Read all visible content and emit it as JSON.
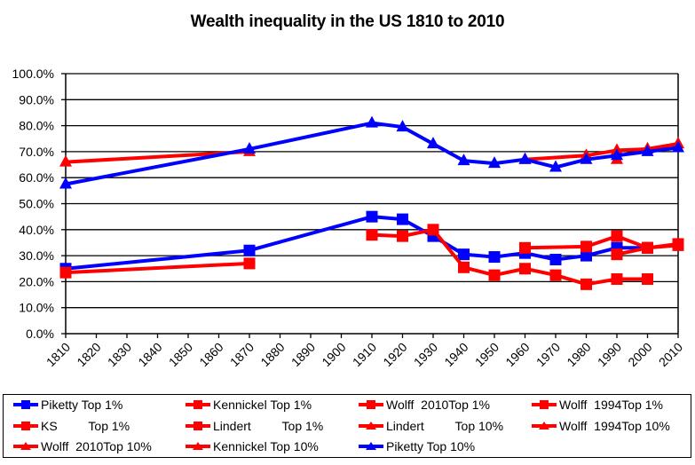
{
  "chart_data": {
    "type": "line",
    "title": "Wealth inequality  in the US 1810 to 2010",
    "xlabel": "",
    "ylabel": "",
    "x_ticks": [
      "1810",
      "1820",
      "1830",
      "1840",
      "1850",
      "1860",
      "1870",
      "1880",
      "1890",
      "1900",
      "1910",
      "1920",
      "1930",
      "1940",
      "1950",
      "1960",
      "1970",
      "1980",
      "1990",
      "2000",
      "2010"
    ],
    "xlim": [
      1810,
      2010
    ],
    "ylim": [
      0,
      100
    ],
    "y_ticks": [
      "0.0%",
      "10.0%",
      "20.0%",
      "30.0%",
      "40.0%",
      "50.0%",
      "60.0%",
      "70.0%",
      "80.0%",
      "90.0%",
      "100.0%"
    ],
    "grid": "horizontal",
    "legend_position": "bottom",
    "series": [
      {
        "name": "Piketty Top 1%",
        "color": "#0000ff",
        "marker": "square",
        "x": [
          1810,
          1870,
          1910,
          1920,
          1930,
          1940,
          1950,
          1960,
          1970,
          1980,
          1990,
          2000
        ],
        "y": [
          25,
          32,
          45,
          44,
          37.5,
          30.5,
          29.5,
          31,
          28.5,
          30,
          33,
          33
        ]
      },
      {
        "name": "Kennickel Top 1%",
        "color": "#ff0000",
        "marker": "square",
        "x": [
          1960,
          1980,
          1990,
          2000,
          2010
        ],
        "y": [
          33,
          33.5,
          37.5,
          33,
          34
        ]
      },
      {
        "name": "Wolff  2010Top 1%",
        "color": "#ff0000",
        "marker": "square",
        "x": [
          2000,
          2010
        ],
        "y": [
          33,
          34.5
        ]
      },
      {
        "name": "Wolff  1994Top 1%",
        "color": "#ff0000",
        "marker": "square",
        "x": [
          1990,
          2000
        ],
        "y": [
          30.5,
          33
        ]
      },
      {
        "name": "KS         Top 1%",
        "color": "#ff0000",
        "marker": "square",
        "x": [
          1910,
          1920,
          1930,
          1940,
          1950,
          1960,
          1970,
          1980,
          1990,
          2000
        ],
        "y": [
          38,
          37.5,
          40,
          25.5,
          22.5,
          25,
          22.5,
          19,
          21,
          21
        ]
      },
      {
        "name": "Lindert         Top 1%",
        "color": "#ff0000",
        "marker": "square",
        "x": [
          1810,
          1870
        ],
        "y": [
          23.5,
          27
        ]
      },
      {
        "name": "Lindert         Top 10%",
        "color": "#ff0000",
        "marker": "triangle",
        "x": [
          1810,
          1870
        ],
        "y": [
          66,
          70
        ]
      },
      {
        "name": "Wolff  1994Top 10%",
        "color": "#ff0000",
        "marker": "triangle",
        "x": [
          1990
        ],
        "y": [
          67
        ]
      },
      {
        "name": "Wolff  2010Top 10%",
        "color": "#ff0000",
        "marker": "triangle",
        "x": [
          2000,
          2010
        ],
        "y": [
          71,
          73
        ]
      },
      {
        "name": "Kennickel Top 10%",
        "color": "#ff0000",
        "marker": "triangle",
        "x": [
          1960,
          1980,
          1990,
          2000,
          2010
        ],
        "y": [
          67,
          68.5,
          70.5,
          71,
          73
        ]
      },
      {
        "name": "Piketty Top 10%",
        "color": "#0000ff",
        "marker": "triangle",
        "x": [
          1810,
          1870,
          1910,
          1920,
          1930,
          1940,
          1950,
          1960,
          1970,
          1980,
          1990,
          2000,
          2010
        ],
        "y": [
          57.5,
          71,
          81,
          79.5,
          73,
          66.5,
          65.5,
          67,
          64,
          67,
          68.5,
          70,
          71.5
        ]
      }
    ]
  },
  "legend": {
    "items": [
      {
        "label": "Piketty Top 1%",
        "color": "#0000ff",
        "marker": "square"
      },
      {
        "label": "Kennickel Top 1%",
        "color": "#ff0000",
        "marker": "square"
      },
      {
        "label": "Wolff  2010Top 1%",
        "color": "#ff0000",
        "marker": "square"
      },
      {
        "label": "Wolff  1994Top 1%",
        "color": "#ff0000",
        "marker": "square"
      },
      {
        "label": "KS         Top 1%",
        "color": "#ff0000",
        "marker": "square"
      },
      {
        "label": "Lindert         Top 1%",
        "color": "#ff0000",
        "marker": "square"
      },
      {
        "label": "Lindert         Top 10%",
        "color": "#ff0000",
        "marker": "triangle"
      },
      {
        "label": "Wolff  1994Top 10%",
        "color": "#ff0000",
        "marker": "triangle"
      },
      {
        "label": "Wolff  2010Top 10%",
        "color": "#ff0000",
        "marker": "triangle"
      },
      {
        "label": "Kennickel Top 10%",
        "color": "#ff0000",
        "marker": "triangle"
      },
      {
        "label": "Piketty Top 10%",
        "color": "#0000ff",
        "marker": "triangle"
      }
    ]
  }
}
